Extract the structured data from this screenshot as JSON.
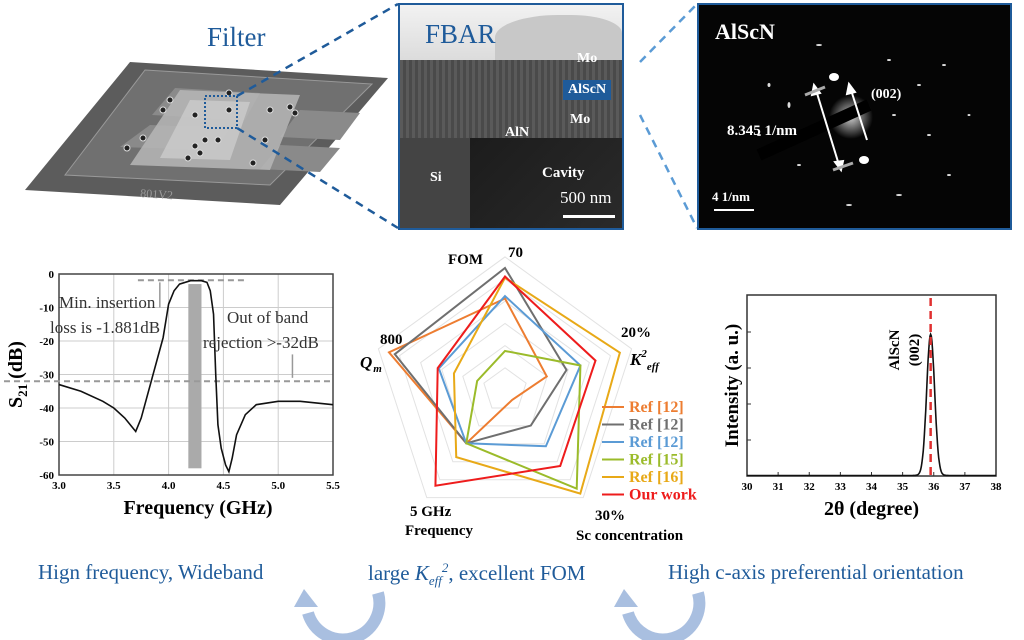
{
  "colors": {
    "accent_blue": "#1f5b9a",
    "arrow_blue": "#a9bfe0"
  },
  "filter": {
    "title": "Filter",
    "chip_label": "801V2"
  },
  "sem": {
    "title": "FBAR",
    "labels": [
      "Mo",
      "AlScN",
      "Mo",
      "AlN",
      "Si",
      "Cavity"
    ],
    "scale_bar": "500 nm"
  },
  "tem": {
    "title": "AlScN",
    "plane": "(002)",
    "distance": "8.345 1/nm",
    "scale_bar": "4 1/nm"
  },
  "captions": {
    "left": "Hign frequency, Wideband",
    "middle_prefix": "large ",
    "middle_k": "K",
    "middle_sub": "eff",
    "middle_sup": "2",
    "middle_suffix": ", excellent FOM",
    "right": "High c-axis preferential orientation"
  },
  "chart_data": [
    {
      "type": "line",
      "title": "",
      "xlabel": "Frequency (GHz)",
      "ylabel": "S21 (dB)",
      "ylabel_main": "S",
      "ylabel_sub": "21",
      "ylabel_unit": " (dB)",
      "xlim": [
        3.0,
        5.5
      ],
      "ylim": [
        -60,
        0
      ],
      "xticks": [
        "3.0",
        "3.5",
        "4.0",
        "4.5",
        "5.0",
        "5.5"
      ],
      "yticks": [
        "0",
        "-10",
        "-20",
        "-30",
        "-40",
        "-50",
        "-60"
      ],
      "grid": true,
      "annotations": [
        "Min. insertion",
        "loss is -1.881dB",
        "Out of band",
        "rejection >-32dB"
      ],
      "reference_lines": [
        -1.881,
        -32
      ],
      "passband": [
        4.18,
        4.3
      ],
      "series": [
        {
          "name": "S21",
          "x": [
            3.0,
            3.2,
            3.4,
            3.5,
            3.6,
            3.65,
            3.7,
            3.75,
            3.8,
            3.85,
            3.9,
            3.95,
            4.0,
            4.05,
            4.1,
            4.2,
            4.3,
            4.35,
            4.38,
            4.41,
            4.43,
            4.45,
            4.48,
            4.52,
            4.55,
            4.58,
            4.62,
            4.7,
            4.8,
            5.0,
            5.2,
            5.5
          ],
          "y": [
            -33,
            -35,
            -38,
            -40,
            -43,
            -45,
            -47,
            -43,
            -37,
            -31,
            -25,
            -19,
            -9,
            -5,
            -3,
            -2,
            -2,
            -2.5,
            -5,
            -12,
            -30,
            -45,
            -52,
            -57,
            -59,
            -55,
            -48,
            -42,
            -39,
            -38,
            -38,
            -39
          ]
        }
      ]
    },
    {
      "type": "radar",
      "axes": [
        {
          "name": "FOM",
          "max_label": "70"
        },
        {
          "name": "K_eff^2",
          "max_label": "20%"
        },
        {
          "name": "Sc concentration",
          "max_label": "30%"
        },
        {
          "name": "Frequency",
          "max_label": "5 GHz"
        },
        {
          "name": "Q_m",
          "max_label": "800"
        }
      ],
      "scale": [
        0,
        1
      ],
      "legend_position": "right",
      "series": [
        {
          "name": "Ref [12]",
          "color": "#ed7d31",
          "values": [
            0.75,
            0.36,
            0.1,
            0.54,
            1.0
          ]
        },
        {
          "name": "Ref [12]",
          "color": "#6f6f6f",
          "values": [
            1.0,
            0.53,
            0.36,
            0.54,
            0.95
          ]
        },
        {
          "name": "Ref [12]",
          "color": "#5b9bd5",
          "values": [
            0.77,
            0.65,
            0.57,
            0.54,
            0.57
          ]
        },
        {
          "name": "Ref [15]",
          "color": "#9bbb2a",
          "values": [
            0.32,
            0.65,
            1.0,
            0.54,
            0.24
          ]
        },
        {
          "name": "Ref [16]",
          "color": "#e8a917",
          "values": [
            0.92,
            0.99,
            1.05,
            0.68,
            0.44
          ]
        },
        {
          "name": "Our work",
          "color": "#ee1c1c",
          "values": [
            0.93,
            0.78,
            0.77,
            0.97,
            0.58
          ]
        }
      ]
    },
    {
      "type": "line",
      "xlabel": "2θ (degree)",
      "ylabel": "Intensity (a. u.)",
      "xlim": [
        30,
        38
      ],
      "ylim": [
        0,
        1
      ],
      "xticks": [
        "30",
        "31",
        "32",
        "33",
        "34",
        "35",
        "36",
        "37",
        "38"
      ],
      "grid": false,
      "annotations": [
        "AlScN",
        "(002)"
      ],
      "reference_line_x": 35.9,
      "series": [
        {
          "name": "XRD",
          "peak_center": 35.9,
          "peak_height": 0.78,
          "peak_fwhm": 0.3
        }
      ]
    }
  ]
}
